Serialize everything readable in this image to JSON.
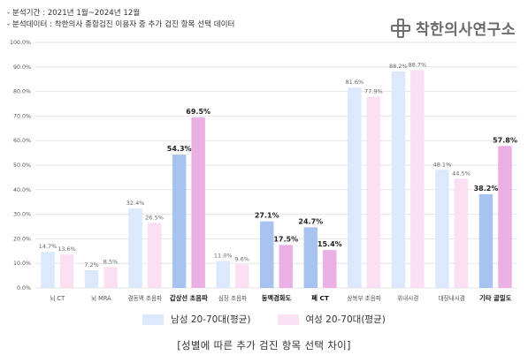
{
  "header": {
    "period": "- 분석기간 : 2021년 1월~2024년 12월",
    "source": "- 분석데이터 : 착한의사 종합검진 이용자 중 추가 검진 항목 선택 데이터"
  },
  "brand": {
    "name": "착한의사연구소",
    "icon": "cross-logo-icon",
    "color": "#707070"
  },
  "chart_data": {
    "type": "bar",
    "title": "[성별에 따른 추가 검진 항목 선택 차이]",
    "xlabel": "",
    "ylabel": "",
    "ylim": [
      0,
      100
    ],
    "yticks": [
      "0.0%",
      "10.0%",
      "20.0%",
      "30.0%",
      "40.0%",
      "50.0%",
      "60.0%",
      "70.0%",
      "80.0%",
      "90.0%",
      "100.0%"
    ],
    "grid": true,
    "legend_position": "bottom",
    "categories": [
      "뇌 CT",
      "뇌 MRA",
      "경동맥 초음파",
      "갑상선 초음파",
      "심장 초음파",
      "동맥경화도",
      "폐 CT",
      "상복부 초음파",
      "위내시경",
      "대장내시경",
      "기타 골밀도"
    ],
    "highlighted": [
      false,
      false,
      false,
      true,
      false,
      true,
      true,
      false,
      false,
      false,
      true
    ],
    "series": [
      {
        "name": "남성 20-70대(평균)",
        "values": [
          14.7,
          7.2,
          32.4,
          54.3,
          11.0,
          27.1,
          24.7,
          81.6,
          88.2,
          48.1,
          38.2
        ],
        "labels": [
          "14.7%",
          "7.2%",
          "32.4%",
          "54.3%",
          "11.0%",
          "27.1%",
          "24.7%",
          "81.6%",
          "88.2%",
          "48.1%",
          "38.2%"
        ],
        "color": "#dce8fb",
        "highlight_color": "#a8c3ef"
      },
      {
        "name": "여성 20-70대(평균)",
        "values": [
          13.6,
          8.5,
          26.5,
          69.5,
          9.6,
          17.5,
          15.4,
          77.9,
          88.7,
          44.5,
          57.8
        ],
        "labels": [
          "13.6%",
          "8.5%",
          "26.5%",
          "69.5%",
          "9.6%",
          "17.5%",
          "15.4%",
          "77.9%",
          "88.7%",
          "44.5%",
          "57.8%"
        ],
        "color": "#fbdff2",
        "highlight_color": "#ebb0e3"
      }
    ]
  }
}
